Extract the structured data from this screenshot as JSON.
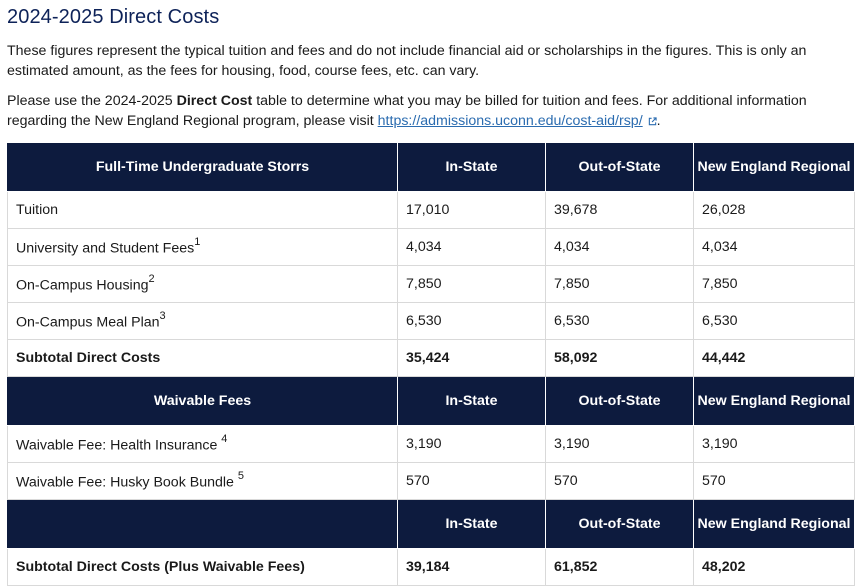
{
  "page": {
    "title": "2024-2025 Direct Costs",
    "para1": "These figures represent the typical tuition and fees and do not include financial aid or scholarships in the figures. This is only an estimated amount, as the fees for housing, food, course fees, etc. can vary.",
    "para2_pre": "Please use the 2024-2025 ",
    "para2_bold": "Direct Cost",
    "para2_post": " table to determine what you may be billed for tuition and fees.  For additional information regarding the New England Regional program, please visit ",
    "link_text": "https://admissions.uconn.edu/cost-aid/rsp/",
    "para2_end": "."
  },
  "table": {
    "header1": [
      "Full-Time Undergraduate Storrs",
      "In-State",
      "Out-of-State",
      "New England Regional"
    ],
    "rows1": [
      {
        "label": "Tuition",
        "sup": "",
        "in": "17,010",
        "out": "39,678",
        "ner": "26,028"
      },
      {
        "label": "University and Student Fees",
        "sup": "1",
        "in": "4,034",
        "out": "4,034",
        "ner": "4,034"
      },
      {
        "label": "On-Campus Housing",
        "sup": "2",
        "in": "7,850",
        "out": "7,850",
        "ner": "7,850"
      },
      {
        "label": "On-Campus Meal Plan",
        "sup": "3",
        "in": "6,530",
        "out": "6,530",
        "ner": "6,530"
      }
    ],
    "subtotal1": {
      "label": "Subtotal Direct Costs",
      "in": "35,424",
      "out": "58,092",
      "ner": "44,442"
    },
    "header2": [
      "Waivable Fees",
      "In-State",
      "Out-of-State",
      "New England Regional"
    ],
    "rows2": [
      {
        "label": "Waivable Fee: Health Insurance ",
        "sup": "4",
        "in": "3,190",
        "out": "3,190",
        "ner": "3,190"
      },
      {
        "label": "Waivable Fee: Husky Book Bundle ",
        "sup": "5",
        "in": "570",
        "out": "570",
        "ner": "570"
      }
    ],
    "header3": [
      "",
      "In-State",
      "Out-of-State",
      "New England Regional"
    ],
    "subtotal2": {
      "label": "Subtotal Direct Costs (Plus Waivable Fees)",
      "in": "39,184",
      "out": "61,852",
      "ner": "48,202"
    }
  },
  "icons": {
    "external_link": "external-link-icon"
  },
  "colors": {
    "header_bg": "#0d1b3e",
    "title": "#0d2258",
    "link": "#2b6cb0"
  }
}
